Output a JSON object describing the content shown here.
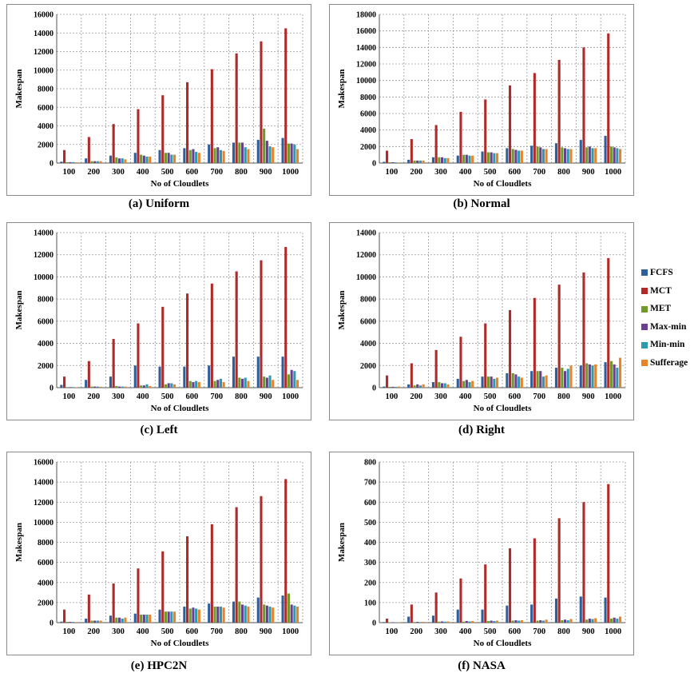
{
  "legend": [
    {
      "name": "FCFS",
      "color": "#2e5f9a"
    },
    {
      "name": "MCT",
      "color": "#b02a2a"
    },
    {
      "name": "MET",
      "color": "#6f9a2a"
    },
    {
      "name": "Max-min",
      "color": "#6a3f92"
    },
    {
      "name": "Min-min",
      "color": "#2f9aae"
    },
    {
      "name": "Sufferage",
      "color": "#e8832a"
    }
  ],
  "chart_data": [
    {
      "type": "bar",
      "caption": "(a) Uniform",
      "xlabel": "No of Cloudlets",
      "ylabel": "Makespan",
      "ylim": [
        0,
        16000
      ],
      "yticks": [
        "0",
        "2000",
        "4000",
        "6000",
        "8000",
        "10000",
        "12000",
        "14000",
        "16000"
      ],
      "grid": true,
      "categories": [
        "100",
        "200",
        "300",
        "400",
        "500",
        "600",
        "700",
        "800",
        "900",
        "1000"
      ],
      "series": [
        {
          "name": "FCFS",
          "values": [
            150,
            500,
            800,
            1100,
            1400,
            1600,
            2000,
            2200,
            2500,
            2700
          ]
        },
        {
          "name": "MCT",
          "values": [
            1400,
            2800,
            4200,
            5800,
            7300,
            8700,
            10100,
            11800,
            13100,
            14500
          ]
        },
        {
          "name": "MET",
          "values": [
            100,
            200,
            600,
            900,
            1100,
            1400,
            1600,
            2200,
            3700,
            2100
          ]
        },
        {
          "name": "Max-min",
          "values": [
            100,
            200,
            500,
            800,
            1100,
            1500,
            1700,
            2200,
            2400,
            2100
          ]
        },
        {
          "name": "Min-min",
          "values": [
            100,
            200,
            500,
            700,
            900,
            1200,
            1400,
            1700,
            1800,
            2000
          ]
        },
        {
          "name": "Sufferage",
          "values": [
            80,
            200,
            400,
            700,
            900,
            1100,
            1300,
            1500,
            1700,
            1500
          ]
        }
      ]
    },
    {
      "type": "bar",
      "caption": "(b) Normal",
      "xlabel": "No of Cloudlets",
      "ylabel": "Makespan",
      "ylim": [
        0,
        18000
      ],
      "yticks": [
        "0",
        "2000",
        "4000",
        "6000",
        "8000",
        "10000",
        "12000",
        "14000",
        "16000",
        "18000"
      ],
      "grid": true,
      "categories": [
        "100",
        "200",
        "300",
        "400",
        "500",
        "600",
        "700",
        "800",
        "900",
        "1000"
      ],
      "series": [
        {
          "name": "FCFS",
          "values": [
            150,
            400,
            700,
            900,
            1400,
            1800,
            2100,
            2400,
            2800,
            3300
          ]
        },
        {
          "name": "MCT",
          "values": [
            1500,
            2900,
            4600,
            6200,
            7700,
            9400,
            10900,
            12500,
            14000,
            15700
          ]
        },
        {
          "name": "MET",
          "values": [
            100,
            300,
            700,
            1000,
            1300,
            1700,
            2000,
            1900,
            1900,
            2000
          ]
        },
        {
          "name": "Max-min",
          "values": [
            100,
            300,
            700,
            1000,
            1300,
            1600,
            1900,
            1800,
            2000,
            1900
          ]
        },
        {
          "name": "Min-min",
          "values": [
            80,
            300,
            600,
            900,
            1200,
            1500,
            1700,
            1700,
            1800,
            1800
          ]
        },
        {
          "name": "Sufferage",
          "values": [
            70,
            300,
            600,
            900,
            1200,
            1500,
            1700,
            1700,
            1800,
            1700
          ]
        }
      ]
    },
    {
      "type": "bar",
      "caption": "(c) Left",
      "xlabel": "No of Cloudlets",
      "ylabel": "Makespan",
      "ylim": [
        0,
        14000
      ],
      "yticks": [
        "0",
        "2000",
        "4000",
        "6000",
        "8000",
        "10000",
        "12000",
        "14000"
      ],
      "grid": true,
      "categories": [
        "100",
        "200",
        "300",
        "400",
        "500",
        "600",
        "700",
        "800",
        "900",
        "1000"
      ],
      "series": [
        {
          "name": "FCFS",
          "values": [
            250,
            700,
            1000,
            2000,
            1900,
            1900,
            2000,
            2800,
            2800,
            2800
          ]
        },
        {
          "name": "MCT",
          "values": [
            1000,
            2400,
            4400,
            5800,
            7300,
            8500,
            9400,
            10500,
            11500,
            12700
          ]
        },
        {
          "name": "MET",
          "values": [
            50,
            100,
            150,
            200,
            300,
            600,
            600,
            900,
            1000,
            1200
          ]
        },
        {
          "name": "Max-min",
          "values": [
            50,
            100,
            100,
            200,
            400,
            500,
            700,
            800,
            900,
            1600
          ]
        },
        {
          "name": "Min-min",
          "values": [
            50,
            100,
            100,
            300,
            400,
            600,
            800,
            900,
            1100,
            1500
          ]
        },
        {
          "name": "Sufferage",
          "values": [
            40,
            80,
            100,
            150,
            300,
            500,
            500,
            600,
            700,
            700
          ]
        }
      ]
    },
    {
      "type": "bar",
      "caption": "(d) Right",
      "xlabel": "No of Cloudlets",
      "ylabel": "Makespan",
      "ylim": [
        0,
        14000
      ],
      "yticks": [
        "0",
        "2000",
        "4000",
        "6000",
        "8000",
        "10000",
        "12000",
        "14000"
      ],
      "grid": true,
      "categories": [
        "100",
        "200",
        "300",
        "400",
        "500",
        "600",
        "700",
        "800",
        "900",
        "1000"
      ],
      "series": [
        {
          "name": "FCFS",
          "values": [
            100,
            300,
            500,
            800,
            1000,
            1300,
            1500,
            1800,
            2000,
            2300
          ]
        },
        {
          "name": "MCT",
          "values": [
            1100,
            2200,
            3400,
            4600,
            5800,
            7000,
            8100,
            9300,
            10400,
            11700
          ]
        },
        {
          "name": "MET",
          "values": [
            80,
            200,
            500,
            600,
            1000,
            1300,
            1500,
            1800,
            2200,
            2400
          ]
        },
        {
          "name": "Max-min",
          "values": [
            80,
            300,
            400,
            700,
            1000,
            1200,
            1500,
            1500,
            2100,
            2100
          ]
        },
        {
          "name": "Min-min",
          "values": [
            70,
            200,
            400,
            500,
            800,
            1000,
            1000,
            1700,
            2000,
            1800
          ]
        },
        {
          "name": "Sufferage",
          "values": [
            100,
            300,
            300,
            600,
            900,
            900,
            1100,
            2000,
            2100,
            2700
          ]
        }
      ]
    },
    {
      "type": "bar",
      "caption": "(e) HPC2N",
      "xlabel": "No of Cloudlets",
      "ylabel": "Makespan",
      "ylim": [
        0,
        16000
      ],
      "yticks": [
        "0",
        "2000",
        "4000",
        "6000",
        "8000",
        "10000",
        "12000",
        "14000",
        "16000"
      ],
      "grid": true,
      "categories": [
        "100",
        "200",
        "300",
        "400",
        "500",
        "600",
        "700",
        "800",
        "900",
        "1000"
      ],
      "series": [
        {
          "name": "FCFS",
          "values": [
            100,
            400,
            700,
            900,
            1300,
            1600,
            1900,
            2100,
            2500,
            2700
          ]
        },
        {
          "name": "MCT",
          "values": [
            1300,
            2800,
            3900,
            5400,
            7100,
            8600,
            9800,
            11500,
            12600,
            14300
          ]
        },
        {
          "name": "MET",
          "values": [
            80,
            200,
            500,
            800,
            1100,
            1400,
            1600,
            2100,
            1800,
            2900
          ]
        },
        {
          "name": "Max-min",
          "values": [
            80,
            200,
            500,
            800,
            1100,
            1500,
            1600,
            1800,
            1700,
            1800
          ]
        },
        {
          "name": "Min-min",
          "values": [
            70,
            200,
            400,
            800,
            1100,
            1400,
            1600,
            1700,
            1600,
            1700
          ]
        },
        {
          "name": "Sufferage",
          "values": [
            60,
            200,
            500,
            800,
            1100,
            1300,
            1500,
            1600,
            1500,
            1600
          ]
        }
      ]
    },
    {
      "type": "bar",
      "caption": "(f) NASA",
      "xlabel": "No of Cloudlets",
      "ylabel": "Makespan",
      "ylim": [
        0,
        800
      ],
      "yticks": [
        "0",
        "100",
        "200",
        "300",
        "400",
        "500",
        "600",
        "700",
        "800"
      ],
      "grid": true,
      "categories": [
        "100",
        "200",
        "300",
        "400",
        "500",
        "600",
        "700",
        "800",
        "900",
        "1000"
      ],
      "series": [
        {
          "name": "FCFS",
          "values": [
            3,
            30,
            35,
            65,
            65,
            85,
            90,
            120,
            130,
            125
          ]
        },
        {
          "name": "MCT",
          "values": [
            20,
            90,
            150,
            220,
            290,
            370,
            420,
            520,
            600,
            690
          ]
        },
        {
          "name": "MET",
          "values": [
            2,
            3,
            5,
            5,
            8,
            10,
            10,
            12,
            15,
            20
          ]
        },
        {
          "name": "Max-min",
          "values": [
            2,
            4,
            6,
            8,
            10,
            12,
            12,
            15,
            20,
            25
          ]
        },
        {
          "name": "Min-min",
          "values": [
            2,
            3,
            5,
            6,
            8,
            10,
            10,
            12,
            18,
            20
          ]
        },
        {
          "name": "Sufferage",
          "values": [
            2,
            4,
            6,
            8,
            10,
            12,
            15,
            18,
            22,
            30
          ]
        }
      ]
    }
  ]
}
